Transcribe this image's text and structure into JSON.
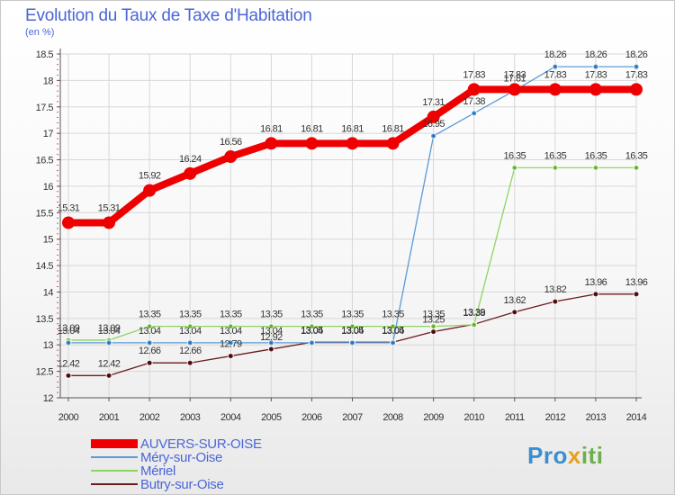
{
  "title": "Evolution du Taux de Taxe d'Habitation",
  "unit": "(en %)",
  "logo": {
    "p1": "Pro",
    "p2": "x",
    "p3": "iti"
  },
  "colors": {
    "text": "#4a66d6",
    "axis": "#555555",
    "grid": "#d7d7d7"
  },
  "chart_data": {
    "type": "line",
    "x": [
      "2000",
      "2001",
      "2002",
      "2003",
      "2004",
      "2005",
      "2006",
      "2007",
      "2008",
      "2009",
      "2010",
      "2011",
      "2012",
      "2013",
      "2014"
    ],
    "ylim": [
      12,
      18.5
    ],
    "yticks": [
      "12",
      "12.5",
      "13",
      "13.5",
      "14",
      "14.5",
      "15",
      "15.5",
      "16",
      "16.5",
      "17",
      "17.5",
      "18",
      "18.5"
    ],
    "grid": true,
    "legend_position": "bottom-left",
    "series": [
      {
        "name": "AUVERS-SUR-OISE",
        "color": "#ee0000",
        "width": 8,
        "marker": 7,
        "values": [
          15.31,
          15.31,
          15.92,
          16.24,
          16.56,
          16.81,
          16.81,
          16.81,
          16.81,
          17.31,
          17.83,
          17.83,
          17.83,
          17.83,
          17.83
        ]
      },
      {
        "name": "Méry-sur-Oise",
        "color": "#5a9bd5",
        "width": 1.3,
        "marker": 3,
        "values": [
          13.04,
          13.04,
          13.04,
          13.04,
          13.04,
          13.04,
          13.04,
          13.04,
          13.04,
          16.95,
          17.38,
          17.81,
          18.26,
          18.26,
          18.26
        ]
      },
      {
        "name": "Mériel",
        "color": "#8fd460",
        "width": 1.3,
        "marker": 3,
        "values": [
          13.09,
          13.09,
          13.35,
          13.35,
          13.35,
          13.35,
          13.35,
          13.35,
          13.35,
          13.35,
          13.38,
          16.35,
          16.35,
          16.35,
          16.35
        ]
      },
      {
        "name": "Butry-sur-Oise",
        "color": "#6b1c1c",
        "width": 1.3,
        "marker": 3,
        "values": [
          12.42,
          12.42,
          12.66,
          12.66,
          12.79,
          12.92,
          13.05,
          13.05,
          13.05,
          13.25,
          13.39,
          13.62,
          13.82,
          13.96,
          13.96
        ]
      }
    ]
  }
}
